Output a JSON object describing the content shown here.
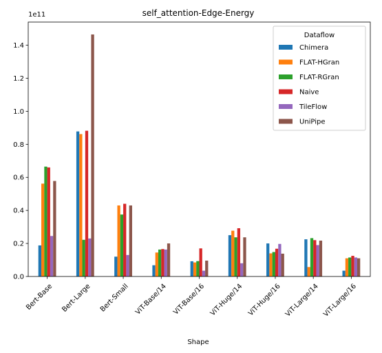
{
  "chart_data": {
    "type": "bar",
    "title": "self_attention-Edge-Energy",
    "xlabel": "Shape",
    "ylabel": "",
    "y_offset_label": "1e11",
    "ylim": [
      0,
      1.54
    ],
    "yticks": [
      "0.0",
      "0.2",
      "0.4",
      "0.6",
      "0.8",
      "1.0",
      "1.2",
      "1.4"
    ],
    "ytick_values": [
      0.0,
      0.2,
      0.4,
      0.6,
      0.8,
      1.0,
      1.2,
      1.4
    ],
    "categories": [
      "Bert-Base",
      "Bert-Large",
      "Bert-Small",
      "ViT-Base/14",
      "ViT-Base/16",
      "ViT-Huge/14",
      "ViT-Huge/16",
      "ViT-Large/14",
      "ViT-Large/16"
    ],
    "legend_title": "Dataflow",
    "legend_position": "upper-right",
    "grid": false,
    "series": [
      {
        "name": "Chimera",
        "color": "#1f77b4",
        "values": [
          0.188,
          0.878,
          0.12,
          0.068,
          0.092,
          0.25,
          0.2,
          0.225,
          0.035
        ]
      },
      {
        "name": "FLAT-HGran",
        "color": "#ff7f0e",
        "values": [
          0.562,
          0.862,
          0.43,
          0.145,
          0.085,
          0.277,
          0.14,
          0.057,
          0.11
        ]
      },
      {
        "name": "FLAT-RGran",
        "color": "#2ca02c",
        "values": [
          0.665,
          0.222,
          0.375,
          0.163,
          0.093,
          0.237,
          0.148,
          0.232,
          0.115
        ]
      },
      {
        "name": "Naive",
        "color": "#d62728",
        "values": [
          0.66,
          0.882,
          0.44,
          0.166,
          0.17,
          0.292,
          0.168,
          0.22,
          0.125
        ]
      },
      {
        "name": "TileFlow",
        "color": "#9467bd",
        "values": [
          0.245,
          0.23,
          0.13,
          0.163,
          0.035,
          0.08,
          0.197,
          0.19,
          0.115
        ]
      },
      {
        "name": "UniPipe",
        "color": "#8c564b",
        "values": [
          0.578,
          1.465,
          0.43,
          0.2,
          0.096,
          0.237,
          0.138,
          0.217,
          0.11
        ]
      }
    ]
  }
}
